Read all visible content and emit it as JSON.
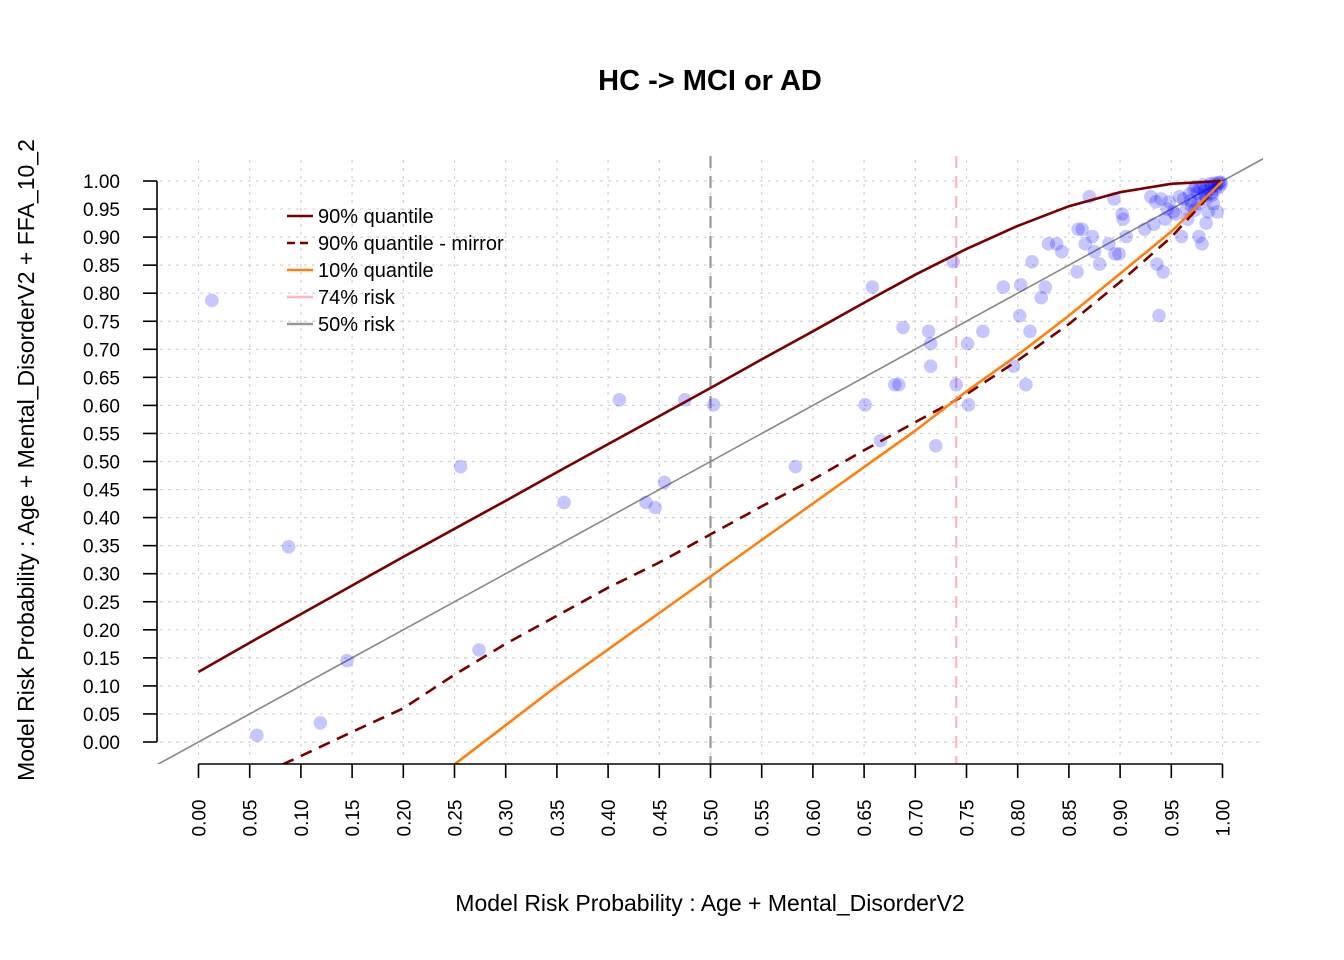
{
  "chart_data": {
    "type": "scatter",
    "title": "HC -> MCI or AD",
    "xlabel": "Model Risk Probability : Age + Mental_DisorderV2",
    "ylabel": "Model Risk Probability : Age + Mental_DisorderV2 + FFA_10_2",
    "xlim": [
      0,
      1
    ],
    "ylim": [
      0,
      1
    ],
    "x_ticks": [
      "0.00",
      "0.05",
      "0.10",
      "0.15",
      "0.20",
      "0.25",
      "0.30",
      "0.35",
      "0.40",
      "0.45",
      "0.50",
      "0.55",
      "0.60",
      "0.65",
      "0.70",
      "0.75",
      "0.80",
      "0.85",
      "0.90",
      "0.95",
      "1.00"
    ],
    "y_ticks": [
      "0.00",
      "0.05",
      "0.10",
      "0.15",
      "0.20",
      "0.25",
      "0.30",
      "0.35",
      "0.40",
      "0.45",
      "0.50",
      "0.55",
      "0.60",
      "0.65",
      "0.70",
      "0.75",
      "0.80",
      "0.85",
      "0.90",
      "0.95",
      "1.00"
    ],
    "grid": true,
    "legend_position": "top-left",
    "point_color": "#0000ff",
    "points": [
      [
        0.013,
        0.787
      ],
      [
        0.057,
        0.012
      ],
      [
        0.088,
        0.348
      ],
      [
        0.119,
        0.034
      ],
      [
        0.145,
        0.145
      ],
      [
        0.256,
        0.491
      ],
      [
        0.274,
        0.164
      ],
      [
        0.357,
        0.427
      ],
      [
        0.411,
        0.61
      ],
      [
        0.437,
        0.427
      ],
      [
        0.446,
        0.418
      ],
      [
        0.455,
        0.463
      ],
      [
        0.475,
        0.61
      ],
      [
        0.503,
        0.601
      ],
      [
        0.583,
        0.491
      ],
      [
        0.651,
        0.601
      ],
      [
        0.658,
        0.811
      ],
      [
        0.666,
        0.537
      ],
      [
        0.68,
        0.637
      ],
      [
        0.684,
        0.637
      ],
      [
        0.688,
        0.739
      ],
      [
        0.713,
        0.732
      ],
      [
        0.715,
        0.71
      ],
      [
        0.715,
        0.67
      ],
      [
        0.72,
        0.528
      ],
      [
        0.737,
        0.856
      ],
      [
        0.74,
        0.637
      ],
      [
        0.751,
        0.71
      ],
      [
        0.752,
        0.601
      ],
      [
        0.766,
        0.732
      ],
      [
        0.786,
        0.811
      ],
      [
        0.796,
        0.67
      ],
      [
        0.802,
        0.76
      ],
      [
        0.803,
        0.815
      ],
      [
        0.808,
        0.637
      ],
      [
        0.812,
        0.732
      ],
      [
        0.814,
        0.856
      ],
      [
        0.823,
        0.792
      ],
      [
        0.827,
        0.811
      ],
      [
        0.83,
        0.888
      ],
      [
        0.838,
        0.888
      ],
      [
        0.843,
        0.874
      ],
      [
        0.858,
        0.838
      ],
      [
        0.859,
        0.914
      ],
      [
        0.863,
        0.914
      ],
      [
        0.866,
        0.888
      ],
      [
        0.87,
        0.972
      ],
      [
        0.873,
        0.901
      ],
      [
        0.875,
        0.874
      ],
      [
        0.88,
        0.852
      ],
      [
        0.889,
        0.888
      ],
      [
        0.894,
        0.968
      ],
      [
        0.895,
        0.87
      ],
      [
        0.899,
        0.87
      ],
      [
        0.902,
        0.941
      ],
      [
        0.903,
        0.932
      ],
      [
        0.906,
        0.901
      ],
      [
        0.924,
        0.914
      ],
      [
        0.93,
        0.972
      ],
      [
        0.933,
        0.923
      ],
      [
        0.935,
        0.963
      ],
      [
        0.936,
        0.852
      ],
      [
        0.938,
        0.76
      ],
      [
        0.94,
        0.968
      ],
      [
        0.942,
        0.838
      ],
      [
        0.944,
        0.932
      ],
      [
        0.946,
        0.95
      ],
      [
        0.948,
        0.963
      ],
      [
        0.952,
        0.945
      ],
      [
        0.954,
        0.941
      ],
      [
        0.958,
        0.972
      ],
      [
        0.96,
        0.901
      ],
      [
        0.962,
        0.968
      ],
      [
        0.965,
        0.95
      ],
      [
        0.966,
        0.932
      ],
      [
        0.968,
        0.977
      ],
      [
        0.97,
        0.955
      ],
      [
        0.972,
        0.985
      ],
      [
        0.973,
        0.948
      ],
      [
        0.975,
        0.978
      ],
      [
        0.976,
        0.96
      ],
      [
        0.977,
        0.901
      ],
      [
        0.978,
        0.988
      ],
      [
        0.979,
        0.97
      ],
      [
        0.98,
        0.888
      ],
      [
        0.981,
        0.993
      ],
      [
        0.982,
        0.982
      ],
      [
        0.983,
        0.975
      ],
      [
        0.984,
        0.925
      ],
      [
        0.985,
        0.99
      ],
      [
        0.986,
        0.945
      ],
      [
        0.987,
        0.985
      ],
      [
        0.988,
        0.995
      ],
      [
        0.989,
        0.978
      ],
      [
        0.99,
        0.99
      ],
      [
        0.991,
        0.96
      ],
      [
        0.992,
        0.996
      ],
      [
        0.993,
        0.985
      ],
      [
        0.994,
        0.993
      ],
      [
        0.995,
        0.945
      ],
      [
        0.996,
        0.997
      ],
      [
        0.997,
        0.99
      ],
      [
        0.998,
        0.998
      ],
      [
        0.999,
        0.995
      ],
      [
        0.974,
        0.99
      ],
      [
        0.969,
        0.965
      ],
      [
        0.984,
        0.968
      ],
      [
        0.99,
        0.975
      ]
    ],
    "series": [
      {
        "name": "90% quantile",
        "color": "#7a0000",
        "dash": "solid",
        "x": [
          0.0,
          0.05,
          0.1,
          0.15,
          0.2,
          0.25,
          0.3,
          0.35,
          0.4,
          0.45,
          0.5,
          0.55,
          0.6,
          0.65,
          0.7,
          0.75,
          0.8,
          0.85,
          0.9,
          0.95,
          1.0
        ],
        "y": [
          0.125,
          0.177,
          0.228,
          0.279,
          0.33,
          0.38,
          0.43,
          0.481,
          0.531,
          0.581,
          0.631,
          0.682,
          0.732,
          0.783,
          0.833,
          0.879,
          0.92,
          0.955,
          0.98,
          0.995,
          1.0
        ]
      },
      {
        "name": "90% quantile - mirror",
        "color": "#7a0000",
        "dash": "dashed",
        "x": [
          0.0821,
          0.1,
          0.15,
          0.2,
          0.25,
          0.3,
          0.35,
          0.4,
          0.45,
          0.5,
          0.55,
          0.6,
          0.65,
          0.7,
          0.75,
          0.8,
          0.85,
          0.9,
          0.95,
          1.0
        ],
        "y": [
          -0.04,
          -0.025,
          0.018,
          0.06,
          0.12,
          0.175,
          0.225,
          0.275,
          0.32,
          0.37,
          0.42,
          0.468,
          0.52,
          0.57,
          0.62,
          0.68,
          0.745,
          0.82,
          0.9,
          1.0
        ]
      },
      {
        "name": "10% quantile",
        "color": "#ff7f0e",
        "dash": "solid",
        "x": [
          0.25,
          0.3,
          0.35,
          0.4,
          0.45,
          0.5,
          0.55,
          0.6,
          0.65,
          0.7,
          0.75,
          0.8,
          0.85,
          0.9,
          0.95,
          1.0
        ],
        "y": [
          -0.04,
          0.03,
          0.1,
          0.165,
          0.23,
          0.295,
          0.36,
          0.425,
          0.49,
          0.555,
          0.625,
          0.69,
          0.76,
          0.835,
          0.91,
          1.0
        ]
      }
    ],
    "reference_lines": [
      {
        "name": "74% risk",
        "type": "vertical",
        "x": 0.74,
        "color": "#ffb6c1",
        "dash": "dashed"
      },
      {
        "name": "50% risk",
        "type": "vertical",
        "x": 0.5,
        "color": "#999999",
        "dash": "dashed"
      },
      {
        "name": "identity",
        "type": "diagonal",
        "color": "#888888",
        "dash": "solid"
      }
    ],
    "legend": [
      {
        "label": "90% quantile",
        "color": "#7a0000",
        "dash": "solid"
      },
      {
        "label": "90% quantile - mirror",
        "color": "#7a0000",
        "dash": "dashed"
      },
      {
        "label": "10% quantile",
        "color": "#ff7f0e",
        "dash": "solid"
      },
      {
        "label": "74% risk",
        "color": "#ffb6c1",
        "dash": "solid"
      },
      {
        "label": "50% risk",
        "color": "#999999",
        "dash": "solid"
      }
    ]
  }
}
